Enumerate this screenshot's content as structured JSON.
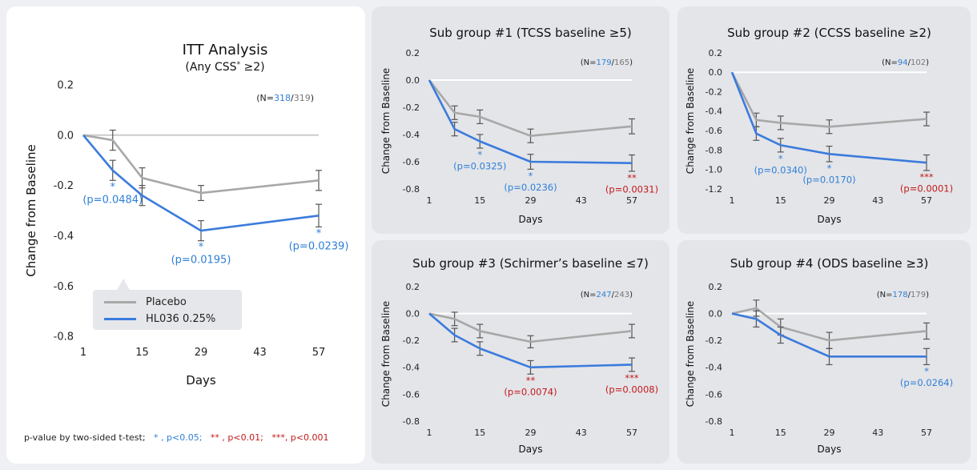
{
  "colors": {
    "placebo": "#a8a8a8",
    "hl036": "#3b7bdc",
    "blue_text": "#2f7fd6",
    "red_text": "#c21a1a"
  },
  "legend": {
    "placebo": "Placebo",
    "hl036": "HL036 0.25%"
  },
  "footnote": {
    "prefix": "p-value by two-sided t-test;",
    "one": "* , p<0.05;",
    "two": "** , p<0.01;",
    "three": "***, p<0.001"
  },
  "chart_data": [
    {
      "id": "main",
      "type": "line",
      "title": "ITT Analysis",
      "subtitle": "(Any CSS",
      "subtitle_sup": "*",
      "subtitle_tail": " ≥2)",
      "xlabel": "Days",
      "ylabel": "Change from Baseline",
      "x_ticks": [
        1,
        15,
        29,
        43,
        57
      ],
      "y_ticks": [
        0.2,
        0.0,
        -0.2,
        -0.4,
        -0.6,
        -0.8
      ],
      "ylim": [
        -0.8,
        0.2
      ],
      "n_label": {
        "prefix": "(N=",
        "a": "318",
        "sep": "/",
        "b": "319",
        "suffix": ")"
      },
      "series": [
        {
          "name": "Placebo",
          "x": [
            1,
            8,
            15,
            29,
            57
          ],
          "values": [
            0.0,
            -0.02,
            -0.17,
            -0.23,
            -0.18
          ],
          "err": [
            0,
            0.04,
            0.04,
            0.03,
            0.04
          ]
        },
        {
          "name": "HL036 0.25%",
          "x": [
            1,
            8,
            15,
            29,
            57
          ],
          "values": [
            0.0,
            -0.14,
            -0.24,
            -0.38,
            -0.32
          ],
          "err": [
            0,
            0.04,
            0.04,
            0.04,
            0.045
          ]
        }
      ],
      "annotations": [
        {
          "x": 8,
          "star": "*",
          "p": "(p=0.0484)",
          "color": "blue"
        },
        {
          "x": 29,
          "star": "*",
          "p": "(p=0.0195)",
          "color": "blue"
        },
        {
          "x": 57,
          "star": "*",
          "p": "(p=0.0239)",
          "color": "blue"
        }
      ]
    },
    {
      "id": "p1",
      "type": "line",
      "title": "Sub group #1 (TCSS baseline ≥5)",
      "xlabel": "Days",
      "ylabel": "Change from Baseline",
      "x_ticks": [
        1,
        15,
        29,
        43,
        57
      ],
      "y_ticks": [
        0.2,
        0.0,
        -0.2,
        -0.4,
        -0.6,
        -0.8
      ],
      "ylim": [
        -0.8,
        0.2
      ],
      "n_label": {
        "prefix": "(N=",
        "a": "179",
        "sep": "/",
        "b": "165",
        "suffix": ")"
      },
      "series": [
        {
          "name": "Placebo",
          "x": [
            1,
            8,
            15,
            29,
            57
          ],
          "values": [
            0.0,
            -0.24,
            -0.27,
            -0.41,
            -0.34
          ],
          "err": [
            0,
            0.05,
            0.05,
            0.05,
            0.055
          ]
        },
        {
          "name": "HL036 0.25%",
          "x": [
            1,
            8,
            15,
            29,
            57
          ],
          "values": [
            0.0,
            -0.36,
            -0.45,
            -0.6,
            -0.61
          ],
          "err": [
            0,
            0.05,
            0.05,
            0.055,
            0.06
          ]
        }
      ],
      "annotations": [
        {
          "x": 15,
          "star": "*",
          "p": "(p=0.0325)",
          "color": "blue"
        },
        {
          "x": 29,
          "star": "*",
          "p": "(p=0.0236)",
          "color": "blue"
        },
        {
          "x": 57,
          "star": "**",
          "p": "(p=0.0031)",
          "color": "red"
        }
      ]
    },
    {
      "id": "p2",
      "type": "line",
      "title": "Sub group #2 (CCSS baseline ≥2)",
      "xlabel": "Days",
      "ylabel": "Change from Baseline",
      "x_ticks": [
        1,
        15,
        29,
        43,
        57
      ],
      "y_ticks": [
        0.2,
        0.0,
        -0.2,
        -0.4,
        -0.6,
        -0.8,
        -1.0,
        -1.2
      ],
      "ylim": [
        -1.2,
        0.2
      ],
      "n_label": {
        "prefix": "(N=",
        "a": "94",
        "sep": "/",
        "b": "102",
        "suffix": ")"
      },
      "series": [
        {
          "name": "Placebo",
          "x": [
            1,
            8,
            15,
            29,
            57
          ],
          "values": [
            0.0,
            -0.49,
            -0.52,
            -0.56,
            -0.48
          ],
          "err": [
            0,
            0.07,
            0.07,
            0.07,
            0.07
          ]
        },
        {
          "name": "HL036 0.25%",
          "x": [
            1,
            8,
            15,
            29,
            57
          ],
          "values": [
            0.0,
            -0.63,
            -0.75,
            -0.84,
            -0.93
          ],
          "err": [
            0,
            0.07,
            0.07,
            0.08,
            0.08
          ]
        }
      ],
      "annotations": [
        {
          "x": 15,
          "star": "*",
          "p": "(p=0.0340)",
          "color": "blue"
        },
        {
          "x": 29,
          "star": "*",
          "p": "(p=0.0170)",
          "color": "blue"
        },
        {
          "x": 57,
          "star": "***",
          "p": "(p=0.0001)",
          "color": "red"
        }
      ]
    },
    {
      "id": "p3",
      "type": "line",
      "title": "Sub group #3 (Schirmer’s baseline ≤7)",
      "xlabel": "Days",
      "ylabel": "Change from Baseline",
      "x_ticks": [
        1,
        15,
        29,
        43,
        57
      ],
      "y_ticks": [
        0.2,
        0.0,
        -0.2,
        -0.4,
        -0.6,
        -0.8
      ],
      "ylim": [
        -0.8,
        0.2
      ],
      "n_label": {
        "prefix": "(N=",
        "a": "247",
        "sep": "/",
        "b": "243",
        "suffix": ")"
      },
      "series": [
        {
          "name": "Placebo",
          "x": [
            1,
            8,
            15,
            29,
            57
          ],
          "values": [
            0.0,
            -0.04,
            -0.13,
            -0.21,
            -0.13
          ],
          "err": [
            0,
            0.05,
            0.05,
            0.045,
            0.05
          ]
        },
        {
          "name": "HL036 0.25%",
          "x": [
            1,
            8,
            15,
            29,
            57
          ],
          "values": [
            0.0,
            -0.16,
            -0.26,
            -0.4,
            -0.38
          ],
          "err": [
            0,
            0.05,
            0.05,
            0.05,
            0.05
          ]
        }
      ],
      "annotations": [
        {
          "x": 29,
          "star": "**",
          "p": "(p=0.0074)",
          "color": "red"
        },
        {
          "x": 57,
          "star": "***",
          "p": "(p=0.0008)",
          "color": "red"
        }
      ]
    },
    {
      "id": "p4",
      "type": "line",
      "title": "Sub group #4 (ODS baseline ≥3)",
      "xlabel": "Days",
      "ylabel": "Change from Baseline",
      "x_ticks": [
        1,
        15,
        29,
        43,
        57
      ],
      "y_ticks": [
        0.2,
        0.0,
        -0.2,
        -0.4,
        -0.6,
        -0.8
      ],
      "ylim": [
        -0.8,
        0.2
      ],
      "n_label": {
        "prefix": "(N=",
        "a": "178",
        "sep": "/",
        "b": "179",
        "suffix": ")"
      },
      "series": [
        {
          "name": "Placebo",
          "x": [
            1,
            8,
            15,
            29,
            57
          ],
          "values": [
            0.0,
            0.04,
            -0.1,
            -0.2,
            -0.13
          ],
          "err": [
            0,
            0.06,
            0.06,
            0.06,
            0.06
          ]
        },
        {
          "name": "HL036 0.25%",
          "x": [
            1,
            8,
            15,
            29,
            57
          ],
          "values": [
            0.0,
            -0.04,
            -0.16,
            -0.32,
            -0.32
          ],
          "err": [
            0,
            0.06,
            0.06,
            0.06,
            0.06
          ]
        }
      ],
      "annotations": [
        {
          "x": 57,
          "star": "*",
          "p": "(p=0.0264)",
          "color": "blue"
        }
      ]
    }
  ]
}
